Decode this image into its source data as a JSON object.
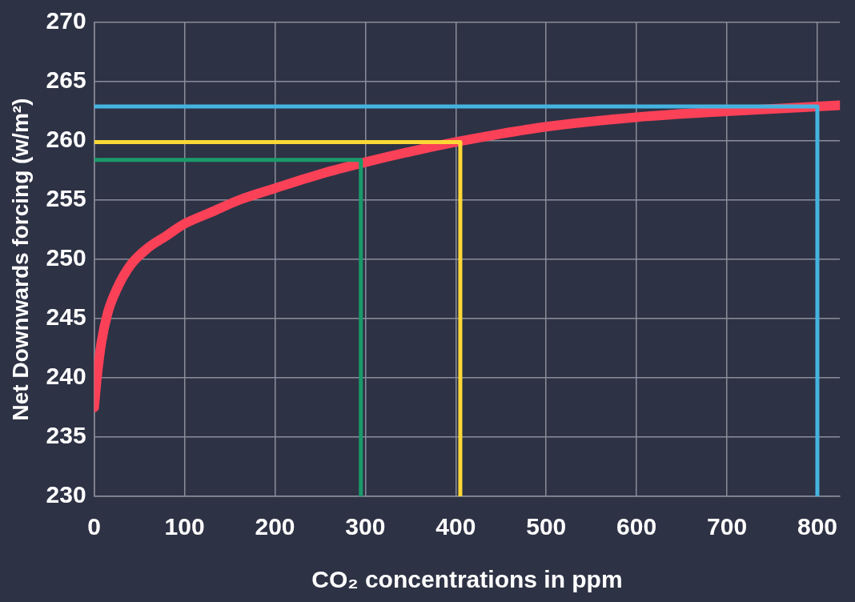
{
  "chart_data": {
    "type": "line",
    "xlabel": "CO₂ concentrations in ppm",
    "ylabel": "Net Downwards forcing (w/m²)",
    "xlim": [
      0,
      825
    ],
    "xticks": [
      0,
      100,
      200,
      300,
      400,
      500,
      600,
      700,
      800
    ],
    "ylim": [
      230,
      270
    ],
    "yticks": [
      230,
      235,
      240,
      245,
      250,
      255,
      260,
      265,
      270
    ],
    "grid": true,
    "marker": "none",
    "series": [
      {
        "color": "#1a9a6a",
        "x": [
          0,
          295,
          295
        ],
        "values": [
          258.4,
          258.4,
          230
        ]
      },
      {
        "color": "#fdd835",
        "x": [
          0,
          405,
          405
        ],
        "values": [
          259.9,
          259.9,
          230
        ]
      },
      {
        "color": "#45b3e0",
        "x": [
          0,
          800,
          800
        ],
        "values": [
          262.9,
          262.9,
          230
        ]
      },
      {
        "color": "#fb4157",
        "x": [
          0,
          3,
          8,
          15,
          25,
          40,
          60,
          80,
          100,
          130,
          160,
          200,
          250,
          300,
          350,
          400,
          450,
          500,
          600,
          700,
          800,
          825
        ],
        "values": [
          237.5,
          240,
          243,
          245.5,
          247.5,
          249.5,
          251,
          252,
          253,
          254,
          255,
          256,
          257.2,
          258.2,
          259.1,
          259.9,
          260.6,
          261.2,
          262,
          262.5,
          262.9,
          263
        ]
      }
    ]
  }
}
